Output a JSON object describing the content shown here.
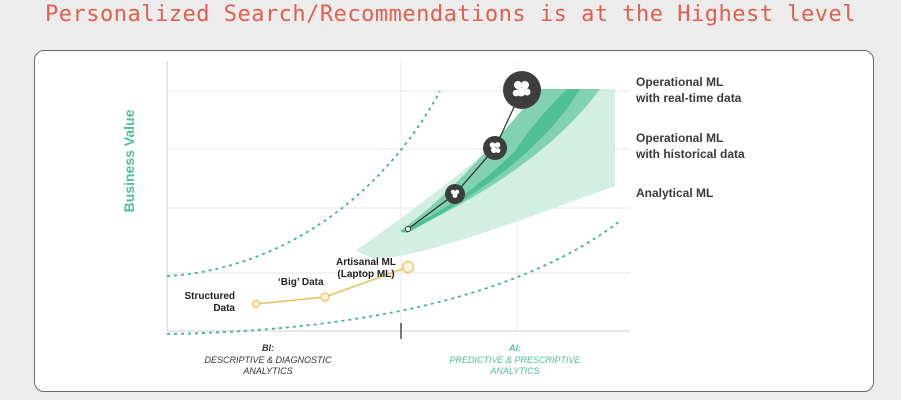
{
  "header": {
    "title": "Personalized Search/Recommendations is at the Highest level"
  },
  "diagram": {
    "y_axis_label": "Business Value",
    "levels": [
      {
        "line1": "Operational ML",
        "line2": "with real-time data"
      },
      {
        "line1": "Operational ML",
        "line2": "with historical data"
      },
      {
        "line1": "Analytical ML",
        "line2": ""
      }
    ],
    "points": [
      {
        "line1": "Structured",
        "line2": "Data"
      },
      {
        "line1": "‘Big’ Data",
        "line2": ""
      },
      {
        "line1": "Artisanal ML",
        "line2": "(Laptop ML)"
      }
    ],
    "bi": {
      "title": "BI:",
      "line1": "DESCRIPTIVE & DIAGNOSTIC",
      "line2": "ANALYTICS"
    },
    "ai": {
      "title": "AI:",
      "line1": "PREDICTIVE & PRESCRIPTIVE",
      "line2": "ANALYTICS"
    },
    "colors": {
      "accent": "#4fbf95",
      "title": "#e0604f",
      "yellow": "#e8c15e",
      "dark": "#3d3d3d"
    },
    "icons": [
      "hops-icon",
      "hops-icon",
      "hops-icon"
    ]
  }
}
